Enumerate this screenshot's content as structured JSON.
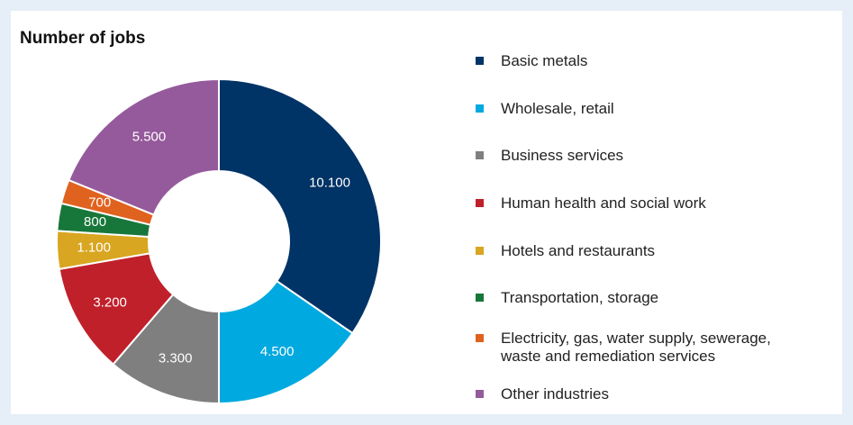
{
  "chart_data": {
    "type": "donut",
    "title": "Number of jobs",
    "categories": [
      "Basic metals",
      "Wholesale, retail",
      "Business services",
      "Human health and social work",
      "Hotels and restaurants",
      "Transportation, storage",
      "Electricity, gas, water supply, sewerage, waste and remediation services",
      "Other industries"
    ],
    "values": [
      10100,
      4500,
      3300,
      3200,
      1100,
      800,
      700,
      5500
    ],
    "value_labels": [
      "10.100",
      "4.500",
      "3.300",
      "3.200",
      "1.100",
      "800",
      "700",
      "5.500"
    ],
    "colors": [
      "#003366",
      "#00a9df",
      "#7f7f7f",
      "#c0202a",
      "#d8a620",
      "#17773a",
      "#e0621f",
      "#955a9b"
    ]
  }
}
